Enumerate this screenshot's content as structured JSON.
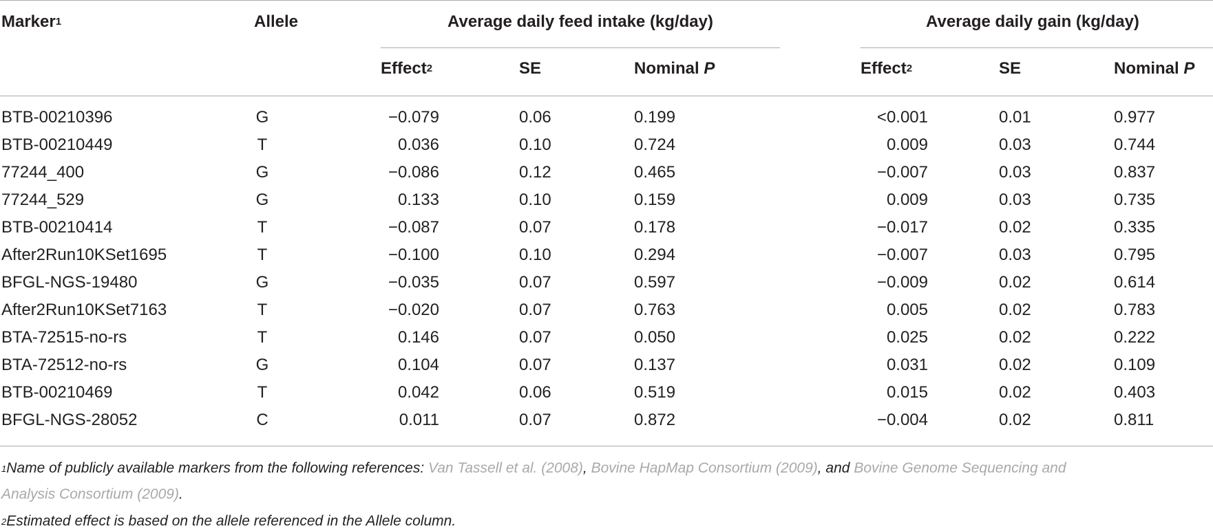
{
  "header": {
    "marker": "Marker",
    "marker_sup": "1",
    "allele": "Allele",
    "group_adfi": "Average daily feed intake (kg/day)",
    "group_adg": "Average daily gain (kg/day)",
    "effect": "Effect",
    "effect_sup": "2",
    "se": "SE",
    "nominal": "Nominal",
    "p": "P"
  },
  "rows": [
    {
      "marker": "BTB-00210396",
      "allele": "G",
      "adfi_effect": "−0.079",
      "adfi_se": "0.06",
      "adfi_p": "0.199",
      "adg_effect": "<0.001",
      "adg_se": "0.01",
      "adg_p": "0.977"
    },
    {
      "marker": "BTB-00210449",
      "allele": "T",
      "adfi_effect": "0.036",
      "adfi_se": "0.10",
      "adfi_p": "0.724",
      "adg_effect": "0.009",
      "adg_se": "0.03",
      "adg_p": "0.744"
    },
    {
      "marker": "77244_400",
      "allele": "G",
      "adfi_effect": "−0.086",
      "adfi_se": "0.12",
      "adfi_p": "0.465",
      "adg_effect": "−0.007",
      "adg_se": "0.03",
      "adg_p": "0.837"
    },
    {
      "marker": "77244_529",
      "allele": "G",
      "adfi_effect": "0.133",
      "adfi_se": "0.10",
      "adfi_p": "0.159",
      "adg_effect": "0.009",
      "adg_se": "0.03",
      "adg_p": "0.735"
    },
    {
      "marker": "BTB-00210414",
      "allele": "T",
      "adfi_effect": "−0.087",
      "adfi_se": "0.07",
      "adfi_p": "0.178",
      "adg_effect": "−0.017",
      "adg_se": "0.02",
      "adg_p": "0.335"
    },
    {
      "marker": "After2Run10KSet1695",
      "allele": "T",
      "adfi_effect": "−0.100",
      "adfi_se": "0.10",
      "adfi_p": "0.294",
      "adg_effect": "−0.007",
      "adg_se": "0.03",
      "adg_p": "0.795"
    },
    {
      "marker": "BFGL-NGS-19480",
      "allele": "G",
      "adfi_effect": "−0.035",
      "adfi_se": "0.07",
      "adfi_p": "0.597",
      "adg_effect": "−0.009",
      "adg_se": "0.02",
      "adg_p": "0.614"
    },
    {
      "marker": "After2Run10KSet7163",
      "allele": "T",
      "adfi_effect": "−0.020",
      "adfi_se": "0.07",
      "adfi_p": "0.763",
      "adg_effect": "0.005",
      "adg_se": "0.02",
      "adg_p": "0.783"
    },
    {
      "marker": "BTA-72515-no-rs",
      "allele": "T",
      "adfi_effect": "0.146",
      "adfi_se": "0.07",
      "adfi_p": "0.050",
      "adg_effect": "0.025",
      "adg_se": "0.02",
      "adg_p": "0.222"
    },
    {
      "marker": "BTA-72512-no-rs",
      "allele": "G",
      "adfi_effect": "0.104",
      "adfi_se": "0.07",
      "adfi_p": "0.137",
      "adg_effect": "0.031",
      "adg_se": "0.02",
      "adg_p": "0.109"
    },
    {
      "marker": "BTB-00210469",
      "allele": "T",
      "adfi_effect": "0.042",
      "adfi_se": "0.06",
      "adfi_p": "0.519",
      "adg_effect": "0.015",
      "adg_se": "0.02",
      "adg_p": "0.403"
    },
    {
      "marker": "BFGL-NGS-28052",
      "allele": "C",
      "adfi_effect": "0.011",
      "adfi_se": "0.07",
      "adfi_p": "0.872",
      "adg_effect": "−0.004",
      "adg_se": "0.02",
      "adg_p": "0.811"
    }
  ],
  "footnotes": {
    "fn1_sup": "1",
    "fn1_text": "Name of publicly available markers from the following references: ",
    "fn1_ref1": "Van Tassell et al. (2008)",
    "fn1_sep1": ", ",
    "fn1_ref2": "Bovine HapMap Consortium (2009)",
    "fn1_sep2": ", and ",
    "fn1_ref3a": "Bovine Genome Sequencing and",
    "fn1_ref3b": "Analysis Consortium (2009)",
    "fn1_end": ".",
    "fn2_sup": "2",
    "fn2_text": "Estimated effect is based on the allele referenced in the Allele column."
  }
}
